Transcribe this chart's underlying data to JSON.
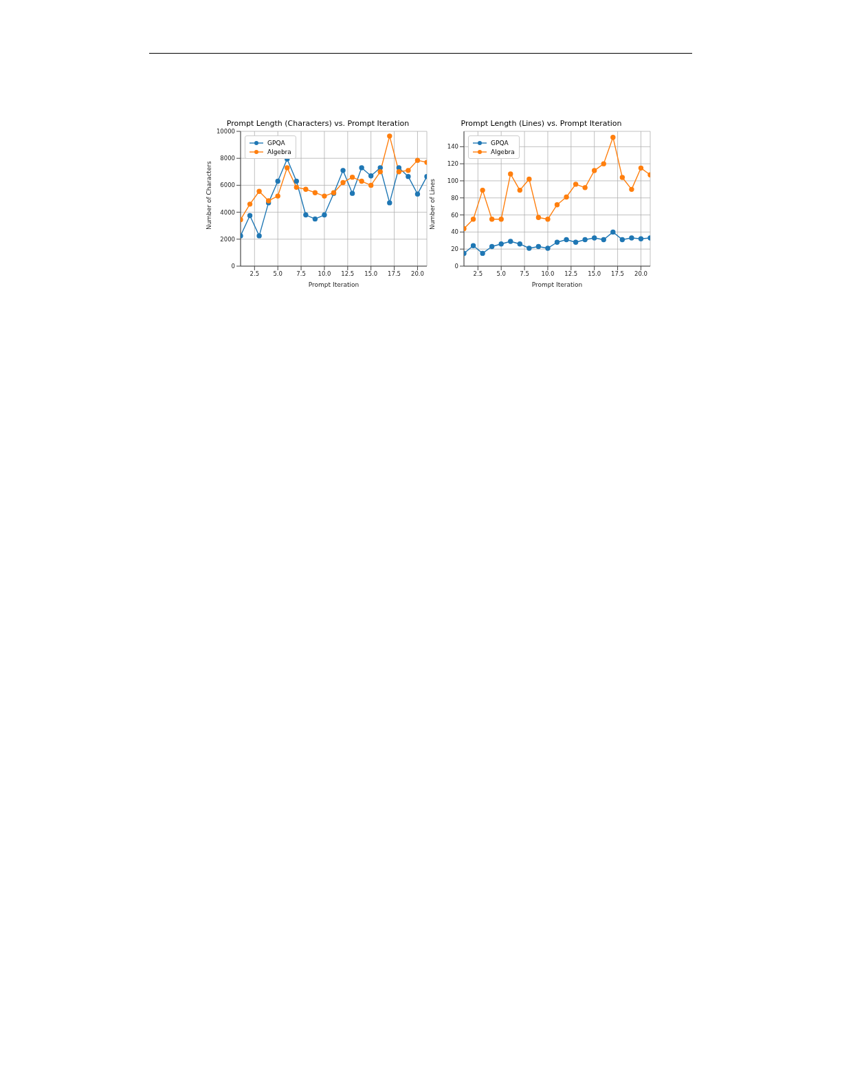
{
  "chart_data": [
    {
      "type": "line",
      "title": "Prompt Length (Characters) vs. Prompt Iteration",
      "xlabel": "Prompt Iteration",
      "ylabel": "Number of Characters",
      "x": [
        1,
        2,
        3,
        4,
        5,
        6,
        7,
        8,
        9,
        10,
        11,
        12,
        13,
        14,
        15,
        16,
        17,
        18,
        19,
        20,
        21
      ],
      "series": [
        {
          "name": "GPQA",
          "color": "#1f77b4",
          "values": [
            2250,
            3750,
            2250,
            4700,
            6300,
            7950,
            6300,
            3800,
            3500,
            3800,
            5400,
            7100,
            5400,
            7300,
            6700,
            7300,
            4700,
            7300,
            6650,
            5350,
            6650
          ]
        },
        {
          "name": "Algebra",
          "color": "#ff7f0e",
          "values": [
            3450,
            4600,
            5550,
            4850,
            5200,
            7300,
            5850,
            5700,
            5450,
            5200,
            5450,
            6200,
            6600,
            6300,
            6000,
            7000,
            9650,
            7000,
            7100,
            7850,
            7700
          ]
        }
      ],
      "xlim": [
        1,
        21
      ],
      "xticks": [
        2.5,
        {
          "value": 5,
          "label": "5.0"
        },
        7.5,
        {
          "value": 10,
          "label": "10.0"
        },
        12.5,
        {
          "value": 15,
          "label": "15.0"
        },
        17.5,
        {
          "value": 20,
          "label": "20.0"
        }
      ],
      "ylim": [
        0,
        10000
      ],
      "yticks": [
        0,
        2000,
        4000,
        6000,
        8000,
        10000
      ],
      "grid": true,
      "legend": "top left",
      "marker": "circle",
      "line_style": "solid"
    },
    {
      "type": "line",
      "title": "Prompt Length (Lines) vs. Prompt Iteration",
      "xlabel": "Prompt Iteration",
      "ylabel": "Number of Lines",
      "x": [
        1,
        2,
        3,
        4,
        5,
        6,
        7,
        8,
        9,
        10,
        11,
        12,
        13,
        14,
        15,
        16,
        17,
        18,
        19,
        20,
        21
      ],
      "series": [
        {
          "name": "GPQA",
          "color": "#1f77b4",
          "values": [
            15,
            24,
            15,
            23,
            26,
            29,
            26,
            21,
            23,
            21,
            28,
            31,
            28,
            31,
            33,
            31,
            40,
            31,
            33,
            32,
            33
          ]
        },
        {
          "name": "Algebra",
          "color": "#ff7f0e",
          "values": [
            44,
            55,
            89,
            55,
            55,
            108,
            89,
            102,
            57,
            55,
            72,
            81,
            96,
            92,
            112,
            120,
            151,
            104,
            90,
            115,
            107
          ]
        }
      ],
      "xlim": [
        1,
        21
      ],
      "xticks": [
        2.5,
        {
          "value": 5,
          "label": "5.0"
        },
        7.5,
        {
          "value": 10,
          "label": "10.0"
        },
        12.5,
        {
          "value": 15,
          "label": "15.0"
        },
        17.5,
        {
          "value": 20,
          "label": "20.0"
        }
      ],
      "ylim": [
        0,
        158
      ],
      "yticks": [
        0,
        20,
        40,
        60,
        80,
        100,
        120,
        140
      ],
      "grid": true,
      "legend": "top left",
      "marker": "circle",
      "line_style": "solid"
    }
  ]
}
